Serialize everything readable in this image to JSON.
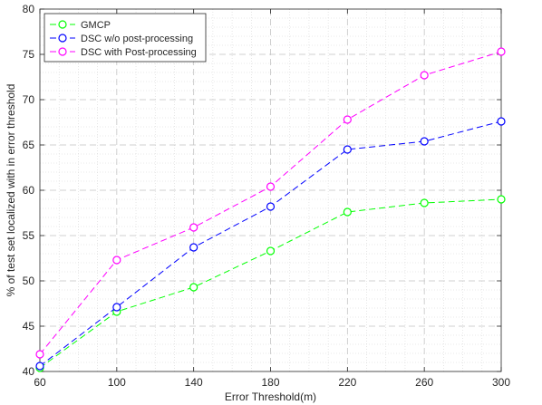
{
  "chart_data": {
    "type": "line",
    "title": "",
    "xlabel": "Error Threshold(m)",
    "ylabel": "% of test set localized with in error threshold",
    "x": [
      60,
      100,
      140,
      180,
      220,
      260,
      300
    ],
    "xlim": [
      60,
      300
    ],
    "ylim": [
      40,
      80
    ],
    "yticks": [
      40,
      45,
      50,
      55,
      60,
      65,
      70,
      75,
      80
    ],
    "grid": true,
    "legend_position": "top-left",
    "series": [
      {
        "name": "GMCP",
        "color": "#00ff00",
        "values": [
          40.4,
          46.6,
          49.3,
          53.3,
          57.6,
          58.6,
          59.0
        ]
      },
      {
        "name": "DSC w/o post-processing",
        "color": "#0000ff",
        "values": [
          40.6,
          47.1,
          53.7,
          58.2,
          64.5,
          65.4,
          67.6
        ]
      },
      {
        "name": "DSC with Post-processing",
        "color": "#ff00ff",
        "values": [
          41.9,
          52.3,
          55.9,
          60.4,
          67.8,
          72.7,
          75.3
        ]
      }
    ]
  }
}
